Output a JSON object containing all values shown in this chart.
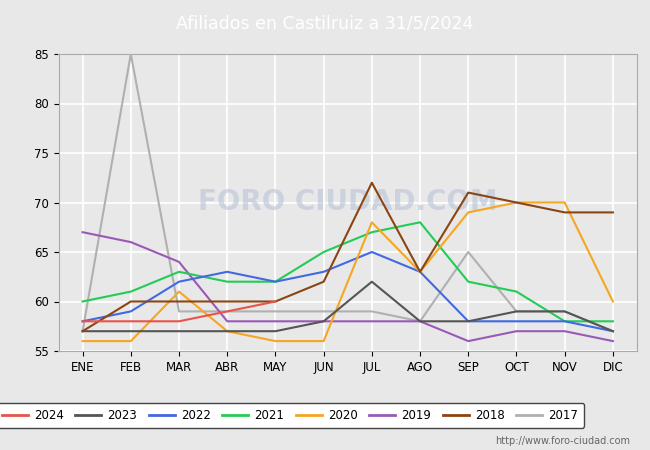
{
  "title": "Afiliados en Castilruiz a 31/5/2024",
  "title_color": "#ffffff",
  "title_bg_color": "#4472c4",
  "months": [
    "ENE",
    "FEB",
    "MAR",
    "ABR",
    "MAY",
    "JUN",
    "JUL",
    "AGO",
    "SEP",
    "OCT",
    "NOV",
    "DIC"
  ],
  "ylim": [
    55,
    85
  ],
  "yticks": [
    55,
    60,
    65,
    70,
    75,
    80,
    85
  ],
  "series": {
    "2024": {
      "color": "#e8534a",
      "data": [
        58,
        58,
        58,
        59,
        60,
        null,
        null,
        null,
        null,
        null,
        null,
        null
      ]
    },
    "2023": {
      "color": "#555555",
      "data": [
        57,
        57,
        57,
        57,
        57,
        58,
        62,
        58,
        58,
        59,
        59,
        57
      ]
    },
    "2022": {
      "color": "#4169e1",
      "data": [
        58,
        59,
        62,
        63,
        62,
        63,
        65,
        63,
        58,
        58,
        58,
        57
      ]
    },
    "2021": {
      "color": "#22cc55",
      "data": [
        60,
        61,
        63,
        62,
        62,
        65,
        67,
        68,
        62,
        61,
        58,
        58
      ]
    },
    "2020": {
      "color": "#f5a623",
      "data": [
        56,
        56,
        61,
        57,
        56,
        56,
        68,
        63,
        69,
        70,
        70,
        60
      ]
    },
    "2019": {
      "color": "#9b59b6",
      "data": [
        67,
        66,
        64,
        58,
        58,
        58,
        58,
        58,
        56,
        57,
        57,
        56
      ]
    },
    "2018": {
      "color": "#8b4513",
      "data": [
        57,
        60,
        60,
        60,
        60,
        62,
        72,
        63,
        71,
        70,
        69,
        69
      ]
    },
    "2017": {
      "color": "#b0b0b0",
      "data": [
        57,
        85,
        59,
        59,
        59,
        59,
        59,
        58,
        65,
        59,
        59,
        57
      ]
    }
  },
  "watermark": "FORO CIUDAD.COM",
  "url": "http://www.foro-ciudad.com",
  "background_color": "#e8e8e8",
  "plot_bg_color": "#e8e8e8",
  "grid_color": "#ffffff"
}
